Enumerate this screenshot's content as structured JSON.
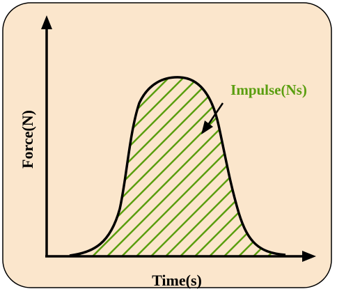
{
  "diagram": {
    "x_axis_label": "Time(s)",
    "y_axis_label": "Force(N)",
    "annotation_label": "Impulse(Ns)"
  },
  "colors": {
    "background_fill": "#fbe6cc",
    "border": "#000000",
    "curve": "#000000",
    "hatch": "#5a9e0f",
    "annotation_text": "#5a9e0f"
  }
}
